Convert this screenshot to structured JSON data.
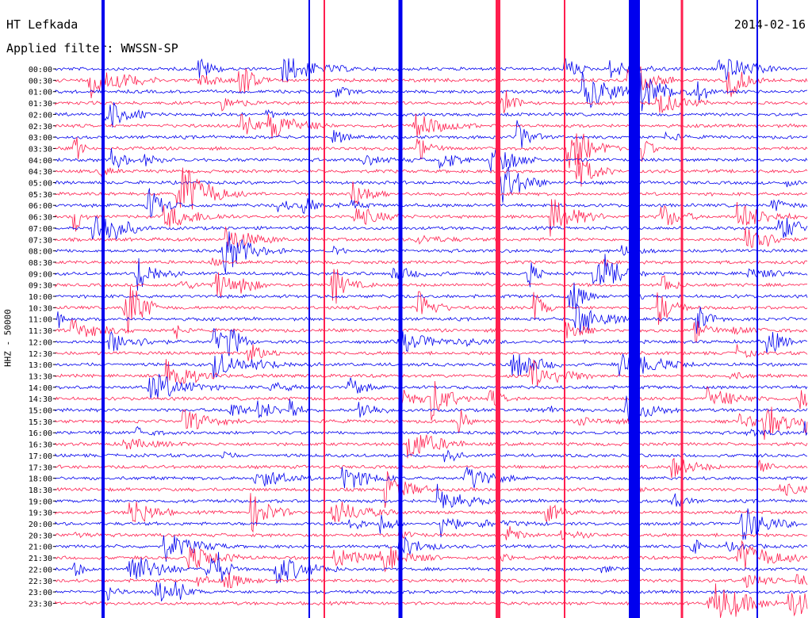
{
  "header": {
    "station": "HT Lefkada",
    "date": "2014-02-16",
    "filter": "Applied filter: WWSSN-SP"
  },
  "y_axis_label": "HHZ - 50000",
  "chart_data": {
    "type": "line",
    "title": "HT Lefkada",
    "subtitle": "Applied filter: WWSSN-SP",
    "date": "2014-02-16",
    "ylabel": "HHZ - 50000",
    "xlabel": "",
    "rows": [
      "00:00",
      "00:30",
      "01:00",
      "01:30",
      "02:00",
      "02:30",
      "03:00",
      "03:30",
      "04:00",
      "04:30",
      "05:00",
      "05:30",
      "06:00",
      "06:30",
      "07:00",
      "07:30",
      "08:00",
      "08:30",
      "09:00",
      "09:30",
      "10:00",
      "10:30",
      "11:00",
      "11:30",
      "12:00",
      "12:30",
      "13:00",
      "13:30",
      "14:00",
      "14:30",
      "15:00",
      "15:30",
      "16:00",
      "16:30",
      "17:00",
      "17:30",
      "18:00",
      "18:30",
      "19:00",
      "19:30",
      "20:00",
      "20:30",
      "21:00",
      "21:30",
      "22:00",
      "22:30",
      "23:00",
      "23:30"
    ],
    "trace_colors": [
      "#0000ee",
      "#ff1e4e"
    ],
    "grid": false,
    "legend": "none"
  }
}
